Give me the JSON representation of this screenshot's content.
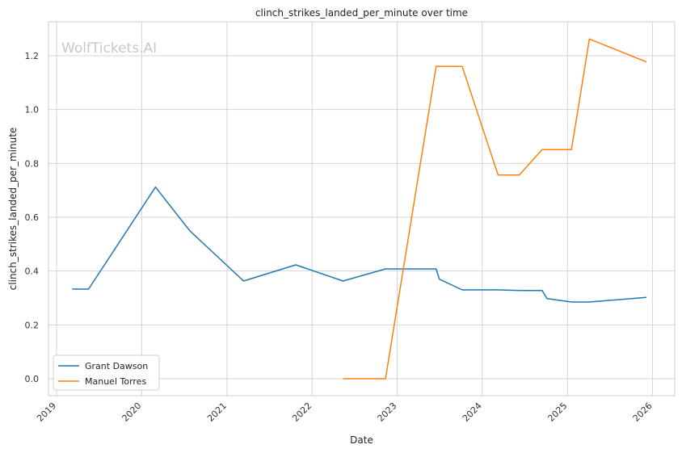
{
  "chart_data": {
    "type": "line",
    "title": "clinch_strikes_landed_per_minute over time",
    "xlabel": "Date",
    "ylabel": "clinch_strikes_landed_per_minute",
    "watermark": "WolfTickets.AI",
    "x_ticks": [
      "2019",
      "2020",
      "2021",
      "2022",
      "2023",
      "2024",
      "2025",
      "2026"
    ],
    "y_ticks": [
      "0.0",
      "0.2",
      "0.4",
      "0.6",
      "0.8",
      "1.0",
      "1.2"
    ],
    "xlim": [
      "2018-11-27",
      "2026-04-06"
    ],
    "ylim": [
      -0.063,
      1.326
    ],
    "grid": true,
    "legend_position": "lower-left",
    "series": [
      {
        "name": "Grant Dawson",
        "color": "#1f77b4",
        "points": [
          [
            "2019-03-09",
            0.333
          ],
          [
            "2019-05-18",
            0.333
          ],
          [
            "2020-02-29",
            0.712
          ],
          [
            "2020-07-25",
            0.55
          ],
          [
            "2021-03-13",
            0.363
          ],
          [
            "2021-10-23",
            0.423
          ],
          [
            "2022-05-14",
            0.363
          ],
          [
            "2022-11-12",
            0.408
          ],
          [
            "2023-06-17",
            0.408
          ],
          [
            "2023-07-01",
            0.37
          ],
          [
            "2023-10-07",
            0.33
          ],
          [
            "2024-03-09",
            0.33
          ],
          [
            "2024-06-08",
            0.328
          ],
          [
            "2024-09-14",
            0.328
          ],
          [
            "2024-10-05",
            0.298
          ],
          [
            "2025-01-18",
            0.285
          ],
          [
            "2025-04-05",
            0.285
          ],
          [
            "2025-12-06",
            0.302
          ]
        ]
      },
      {
        "name": "Manuel Torres",
        "color": "#ff7f0e",
        "points": [
          [
            "2022-05-14",
            0.0
          ],
          [
            "2022-11-12",
            0.0
          ],
          [
            "2023-06-17",
            1.16
          ],
          [
            "2023-10-07",
            1.16
          ],
          [
            "2024-03-09",
            0.757
          ],
          [
            "2024-06-08",
            0.757
          ],
          [
            "2024-09-14",
            0.851
          ],
          [
            "2025-01-18",
            0.851
          ],
          [
            "2025-04-05",
            1.262
          ],
          [
            "2025-12-06",
            1.177
          ]
        ]
      }
    ]
  }
}
